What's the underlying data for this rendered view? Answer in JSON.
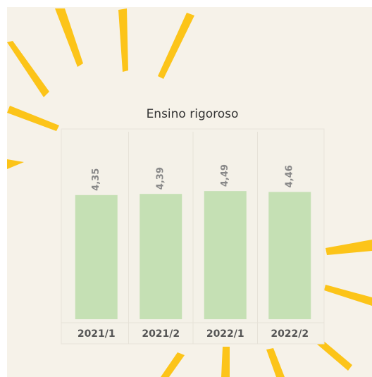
{
  "chart_data": {
    "type": "bar",
    "title": "Ensino rigoroso",
    "categories": [
      "2021/1",
      "2021/2",
      "2022/1",
      "2022/2"
    ],
    "values": [
      4.35,
      4.39,
      4.49,
      4.46
    ],
    "value_labels": [
      "4,35",
      "4,39",
      "4,49",
      "4,46"
    ],
    "color": "#c5e0b4"
  }
}
